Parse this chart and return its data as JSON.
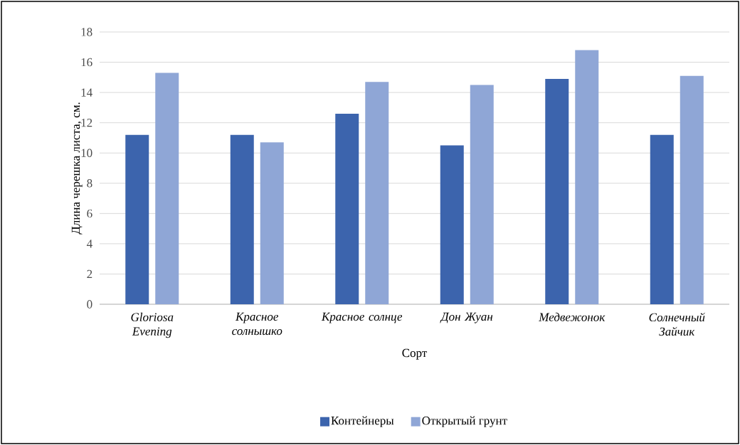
{
  "chart_data": {
    "type": "bar",
    "xlabel": "Сорт",
    "ylabel": "Длина черешка листа, см.",
    "categories": [
      "Gloriosa Evening",
      "Красное солнышко",
      "Красное солнце",
      "Дон Жуан",
      "Медвежонок",
      "Солнечный Зайчик"
    ],
    "series": [
      {
        "name": "Контейнеры",
        "color": "#3c64ad",
        "values": [
          11.2,
          11.2,
          12.6,
          10.5,
          14.9,
          11.2
        ]
      },
      {
        "name": "Открытый грунт",
        "color": "#8fa6d6",
        "values": [
          15.3,
          10.7,
          14.7,
          14.5,
          16.8,
          15.1
        ]
      }
    ],
    "ylim": [
      0,
      18
    ],
    "yticks": [
      0,
      2,
      4,
      6,
      8,
      10,
      12,
      14,
      16,
      18
    ],
    "grid": "y",
    "legend": "bottom"
  }
}
